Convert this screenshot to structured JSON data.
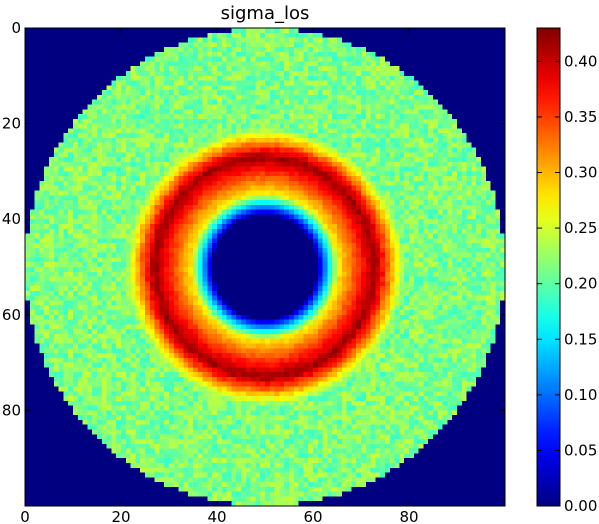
{
  "chart_data": {
    "type": "heatmap",
    "title": "sigma_los",
    "xlabel": "",
    "ylabel": "",
    "grid_size": [
      100,
      100
    ],
    "xlim": [
      0,
      100
    ],
    "ylim": [
      100,
      0
    ],
    "x_ticks": [
      0,
      20,
      40,
      60,
      80
    ],
    "y_ticks": [
      0,
      20,
      40,
      60,
      80
    ],
    "x_tick_labels": [
      "0",
      "20",
      "40",
      "60",
      "80"
    ],
    "y_tick_labels": [
      "0",
      "20",
      "40",
      "60",
      "80"
    ],
    "colormap": "jet",
    "color_range": [
      0.0,
      0.43
    ],
    "colorbar_ticks": [
      0.0,
      0.05,
      0.1,
      0.15,
      0.2,
      0.25,
      0.3,
      0.35,
      0.4
    ],
    "colorbar_labels": [
      "0.00",
      "0.05",
      "0.10",
      "0.15",
      "0.20",
      "0.25",
      "0.30",
      "0.35",
      "0.40"
    ],
    "structure": {
      "center": [
        50,
        50
      ],
      "outer_disk_radius": 50,
      "background_value": 0.0,
      "disk_base_value": 0.215,
      "disk_noise_amplitude": 0.03,
      "inner_hole_radius": 12,
      "inner_edge_start_radius": 11,
      "inner_edge_end_radius": 15,
      "ring_peak_radius": 23,
      "ring_peak_value": 0.42,
      "ring_outer_falloff_radius": 29
    }
  }
}
